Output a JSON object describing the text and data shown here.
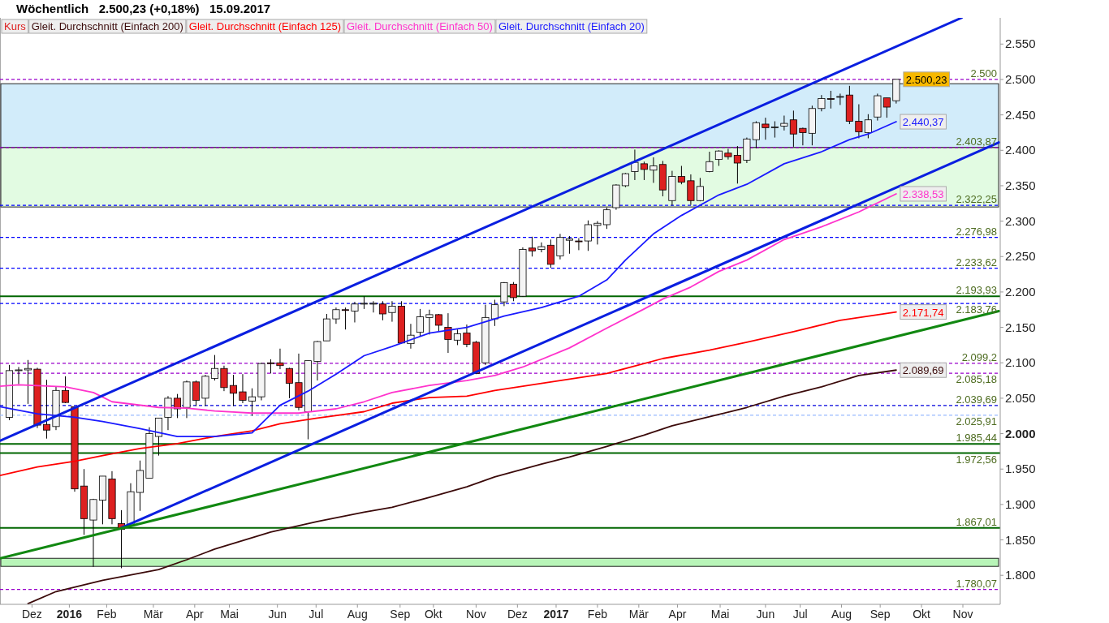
{
  "chart_data": {
    "type": "candlestick",
    "title": "Wöchentlich   2.500,23 (+0,18%)   15.09.2017",
    "xlim": [
      "2015-11-13",
      "2017-12-02"
    ],
    "xticks": [
      {
        "value": "2015-12-07",
        "label": "Dez"
      },
      {
        "value": "2016-01-04",
        "label": "2016"
      },
      {
        "value": "2016-02-01",
        "label": "Feb"
      },
      {
        "value": "2016-03-07",
        "label": "Mär"
      },
      {
        "value": "2016-04-07",
        "label": "Apr"
      },
      {
        "value": "2016-05-03",
        "label": "Mai"
      },
      {
        "value": "2016-06-08",
        "label": "Jun"
      },
      {
        "value": "2016-07-07",
        "label": "Jul"
      },
      {
        "value": "2016-08-07",
        "label": "Aug"
      },
      {
        "value": "2016-09-08",
        "label": "Sep"
      },
      {
        "value": "2016-10-03",
        "label": "Okt"
      },
      {
        "value": "2016-11-04",
        "label": "Nov"
      },
      {
        "value": "2016-12-05",
        "label": "Dez"
      },
      {
        "value": "2017-01-03",
        "label": "2017"
      },
      {
        "value": "2017-02-03",
        "label": "Feb"
      },
      {
        "value": "2017-03-06",
        "label": "Mär"
      },
      {
        "value": "2017-04-04",
        "label": "Apr"
      },
      {
        "value": "2017-05-06",
        "label": "Mai"
      },
      {
        "value": "2017-06-09",
        "label": "Jun"
      },
      {
        "value": "2017-07-05",
        "label": "Jul"
      },
      {
        "value": "2017-08-05",
        "label": "Aug"
      },
      {
        "value": "2017-09-03",
        "label": "Sep"
      },
      {
        "value": "2017-10-04",
        "label": "Okt"
      },
      {
        "value": "2017-11-04",
        "label": "Nov"
      }
    ],
    "ylim": [
      1759,
      2587
    ],
    "yticks": [
      {
        "value": 1800,
        "label": "1.800"
      },
      {
        "value": 1850,
        "label": "1.850"
      },
      {
        "value": 1900,
        "label": "1.900"
      },
      {
        "value": 1950,
        "label": "1.950"
      },
      {
        "value": 2000,
        "label": "2.000"
      },
      {
        "value": 2050,
        "label": "2.050"
      },
      {
        "value": 2100,
        "label": "2.100"
      },
      {
        "value": 2150,
        "label": "2.150"
      },
      {
        "value": 2200,
        "label": "2.200"
      },
      {
        "value": 2250,
        "label": "2.250"
      },
      {
        "value": 2300,
        "label": "2.300"
      },
      {
        "value": 2350,
        "label": "2.350"
      },
      {
        "value": 2400,
        "label": "2.400"
      },
      {
        "value": 2450,
        "label": "2.450"
      },
      {
        "value": 2500,
        "label": "2.500"
      },
      {
        "value": 2550,
        "label": "2.550"
      }
    ],
    "legend": "top left",
    "series": [
      {
        "name": "Kurs",
        "color": "#dd2020",
        "colors": [
          "#f4f4f4",
          "#f4f4f4",
          "#f4f4f4",
          "#dd2020",
          "#dd2020",
          "#f4f4f4",
          "#dd2020",
          "#dd2020",
          "#dd2020",
          "#f4f4f4",
          "#f4f4f4",
          "#dd2020",
          "#dd2020",
          "#f4f4f4",
          "#f4f4f4",
          "#f4f4f4",
          "#f4f4f4",
          "#f4f4f4",
          "#dd2020",
          "#f4f4f4",
          "#dd2020",
          "#f4f4f4",
          "#f4f4f4",
          "#dd2020",
          "#dd2020",
          "#dd2020",
          "#f4f4f4",
          "#f4f4f4",
          "#dd2020",
          "#dd2020",
          "#dd2020",
          "#dd2020",
          "#f4f4f4",
          "#f4f4f4",
          "#f4f4f4",
          "#f4f4f4",
          "#dd2020",
          "#f4f4f4",
          "#f4f4f4",
          "#f4f4f4",
          "#dd2020",
          "#f4f4f4",
          "#dd2020",
          "#f4f4f4",
          "#f4f4f4",
          "#f4f4f4",
          "#dd2020",
          "#dd2020",
          "#f4f4f4",
          "#dd2020",
          "#dd2020",
          "#f4f4f4",
          "#f4f4f4",
          "#f4f4f4",
          "#dd2020",
          "#f4f4f4",
          "#dd2020",
          "#f4f4f4",
          "#dd2020",
          "#f4f4f4",
          "#f4f4f4",
          "#dd2020",
          "#f4f4f4",
          "#f4f4f4",
          "#f4f4f4",
          "#f4f4f4",
          "#f4f4f4",
          "#f4f4f4",
          "#dd2020",
          "#f4f4f4",
          "#dd2020",
          "#f4f4f4",
          "#dd2020",
          "#dd2020",
          "#f4f4f4",
          "#f4f4f4",
          "#f4f4f4",
          "#dd2020",
          "#dd2020",
          "#f4f4f4",
          "#f4f4f4",
          "#dd2020",
          "#f4f4f4",
          "#f4f4f4",
          "#dd2020",
          "#dd2020",
          "#f4f4f4",
          "#f4f4f4",
          "#dd2020",
          "#f4f4f4",
          "#dd2020",
          "#dd2020",
          "#f4f4f4",
          "#f4f4f4",
          "#dd2020",
          "#f4f4f4"
        ],
        "x": [
          "2015-11-20",
          "2015-11-27",
          "2015-12-04",
          "2015-12-11",
          "2015-12-18",
          "2015-12-25",
          "2016-01-01",
          "2016-01-08",
          "2016-01-15",
          "2016-01-22",
          "2016-01-29",
          "2016-02-05",
          "2016-02-12",
          "2016-02-19",
          "2016-02-26",
          "2016-03-04",
          "2016-03-11",
          "2016-03-18",
          "2016-03-25",
          "2016-04-01",
          "2016-04-08",
          "2016-04-15",
          "2016-04-22",
          "2016-04-29",
          "2016-05-06",
          "2016-05-13",
          "2016-05-20",
          "2016-05-27",
          "2016-06-03",
          "2016-06-10",
          "2016-06-17",
          "2016-06-24",
          "2016-07-01",
          "2016-07-08",
          "2016-07-15",
          "2016-07-22",
          "2016-07-29",
          "2016-08-05",
          "2016-08-12",
          "2016-08-19",
          "2016-08-26",
          "2016-09-02",
          "2016-09-09",
          "2016-09-16",
          "2016-09-23",
          "2016-09-30",
          "2016-10-07",
          "2016-10-14",
          "2016-10-21",
          "2016-10-28",
          "2016-11-04",
          "2016-11-11",
          "2016-11-18",
          "2016-11-25",
          "2016-12-02",
          "2016-12-09",
          "2016-12-16",
          "2016-12-23",
          "2016-12-30",
          "2017-01-06",
          "2017-01-13",
          "2017-01-20",
          "2017-01-27",
          "2017-02-03",
          "2017-02-10",
          "2017-02-17",
          "2017-02-24",
          "2017-03-03",
          "2017-03-10",
          "2017-03-17",
          "2017-03-24",
          "2017-03-31",
          "2017-04-07",
          "2017-04-14",
          "2017-04-21",
          "2017-04-28",
          "2017-05-05",
          "2017-05-12",
          "2017-05-19",
          "2017-05-26",
          "2017-06-02",
          "2017-06-09",
          "2017-06-16",
          "2017-06-23",
          "2017-06-30",
          "2017-07-07",
          "2017-07-14",
          "2017-07-21",
          "2017-07-28",
          "2017-08-04",
          "2017-08-11",
          "2017-08-18",
          "2017-08-25",
          "2017-09-01",
          "2017-09-08",
          "2017-09-15"
        ],
        "ohlc": [
          [
            2023,
            2097,
            2019,
            2089
          ],
          [
            2089,
            2094,
            2070,
            2090
          ],
          [
            2090,
            2104,
            2042,
            2092
          ],
          [
            2091,
            2093,
            2008,
            2012
          ],
          [
            2013,
            2076,
            1993,
            2005
          ],
          [
            2010,
            2067,
            2005,
            2061
          ],
          [
            2061,
            2081,
            2043,
            2044
          ],
          [
            2038,
            2038,
            1918,
            1922
          ],
          [
            1926,
            1950,
            1857,
            1880
          ],
          [
            1878,
            1908,
            1812,
            1907
          ],
          [
            1906,
            1940,
            1872,
            1940
          ],
          [
            1936,
            1947,
            1872,
            1880
          ],
          [
            1873,
            1892,
            1810,
            1865
          ],
          [
            1871,
            1930,
            1871,
            1918
          ],
          [
            1917,
            1962,
            1891,
            1948
          ],
          [
            1937,
            2009,
            1937,
            2000
          ],
          [
            1996,
            2022,
            1969,
            2022
          ],
          [
            2023,
            2053,
            2005,
            2050
          ],
          [
            2050,
            2056,
            2022,
            2035
          ],
          [
            2037,
            2075,
            2022,
            2073
          ],
          [
            2073,
            2075,
            2039,
            2047
          ],
          [
            2050,
            2083,
            2039,
            2081
          ],
          [
            2078,
            2111,
            2075,
            2092
          ],
          [
            2092,
            2096,
            2060,
            2065
          ],
          [
            2068,
            2083,
            2039,
            2057
          ],
          [
            2059,
            2084,
            2043,
            2047
          ],
          [
            2046,
            2064,
            2025,
            2052
          ],
          [
            2052,
            2100,
            2047,
            2099
          ],
          [
            2100,
            2105,
            2085,
            2099
          ],
          [
            2100,
            2120,
            2091,
            2096
          ],
          [
            2092,
            2093,
            2050,
            2071
          ],
          [
            2072,
            2113,
            2033,
            2037
          ],
          [
            2031,
            2103,
            1992,
            2103
          ],
          [
            2102,
            2131,
            2075,
            2130
          ],
          [
            2131,
            2169,
            2131,
            2162
          ],
          [
            2162,
            2178,
            2155,
            2175
          ],
          [
            2175,
            2178,
            2147,
            2174
          ],
          [
            2173,
            2186,
            2157,
            2183
          ],
          [
            2183,
            2194,
            2176,
            2184
          ],
          [
            2184,
            2187,
            2171,
            2184
          ],
          [
            2183,
            2187,
            2160,
            2169
          ],
          [
            2171,
            2187,
            2158,
            2180
          ],
          [
            2180,
            2187,
            2127,
            2128
          ],
          [
            2127,
            2155,
            2120,
            2139
          ],
          [
            2143,
            2176,
            2137,
            2165
          ],
          [
            2164,
            2175,
            2140,
            2168
          ],
          [
            2168,
            2169,
            2144,
            2153
          ],
          [
            2150,
            2170,
            2114,
            2133
          ],
          [
            2132,
            2147,
            2125,
            2141
          ],
          [
            2142,
            2154,
            2122,
            2126
          ],
          [
            2129,
            2131,
            2084,
            2085
          ],
          [
            2100,
            2182,
            2097,
            2164
          ],
          [
            2162,
            2189,
            2152,
            2182
          ],
          [
            2186,
            2214,
            2180,
            2213
          ],
          [
            2211,
            2214,
            2187,
            2192
          ],
          [
            2194,
            2263,
            2193,
            2260
          ],
          [
            2262,
            2278,
            2250,
            2258
          ],
          [
            2260,
            2270,
            2256,
            2264
          ],
          [
            2266,
            2274,
            2234,
            2239
          ],
          [
            2251,
            2282,
            2246,
            2277
          ],
          [
            2273,
            2279,
            2254,
            2275
          ],
          [
            2272,
            2276,
            2259,
            2271
          ],
          [
            2272,
            2301,
            2258,
            2295
          ],
          [
            2294,
            2300,
            2267,
            2297
          ],
          [
            2295,
            2319,
            2289,
            2316
          ],
          [
            2319,
            2352,
            2316,
            2351
          ],
          [
            2350,
            2368,
            2348,
            2367
          ],
          [
            2370,
            2401,
            2358,
            2383
          ],
          [
            2381,
            2384,
            2358,
            2373
          ],
          [
            2372,
            2390,
            2354,
            2378
          ],
          [
            2380,
            2385,
            2335,
            2344
          ],
          [
            2329,
            2371,
            2322,
            2363
          ],
          [
            2363,
            2378,
            2352,
            2355
          ],
          [
            2357,
            2366,
            2323,
            2329
          ],
          [
            2329,
            2361,
            2328,
            2349
          ],
          [
            2370,
            2398,
            2369,
            2384
          ],
          [
            2387,
            2400,
            2378,
            2399
          ],
          [
            2396,
            2402,
            2387,
            2391
          ],
          [
            2393,
            2406,
            2353,
            2382
          ],
          [
            2386,
            2418,
            2382,
            2416
          ],
          [
            2415,
            2441,
            2403,
            2439
          ],
          [
            2437,
            2446,
            2415,
            2432
          ],
          [
            2432,
            2441,
            2418,
            2433
          ],
          [
            2434,
            2449,
            2428,
            2438
          ],
          [
            2443,
            2456,
            2405,
            2423
          ],
          [
            2431,
            2432,
            2407,
            2425
          ],
          [
            2424,
            2463,
            2407,
            2459
          ],
          [
            2459,
            2478,
            2455,
            2473
          ],
          [
            2473,
            2484,
            2459,
            2472
          ],
          [
            2475,
            2480,
            2464,
            2476
          ],
          [
            2478,
            2491,
            2437,
            2441
          ],
          [
            2441,
            2465,
            2417,
            2426
          ],
          [
            2425,
            2451,
            2417,
            2443
          ],
          [
            2447,
            2480,
            2442,
            2477
          ],
          [
            2474,
            2474,
            2446,
            2461
          ],
          [
            2470,
            2500.23,
            2466,
            2500.23
          ]
        ]
      },
      {
        "type": "line",
        "name": "Gleit. Durchschnitt (Einfach 200)",
        "color": "#3b0a0a",
        "x": [
          "2015-12-04",
          "2015-12-25",
          "2016-01-29",
          "2016-03-11",
          "2016-04-01",
          "2016-04-22",
          "2016-06-03",
          "2016-07-08",
          "2016-08-12",
          "2016-09-02",
          "2016-09-30",
          "2016-10-28",
          "2016-11-18",
          "2016-12-23",
          "2017-01-13",
          "2017-02-10",
          "2017-03-10",
          "2017-03-31",
          "2017-05-05",
          "2017-05-26",
          "2017-06-23",
          "2017-07-21",
          "2017-08-18",
          "2017-09-15"
        ],
        "values": [
          1760,
          1777,
          1793,
          1808,
          1822,
          1837,
          1861,
          1876,
          1889,
          1896,
          1910,
          1925,
          1939,
          1957,
          1967,
          1982,
          1998,
          2011,
          2027,
          2037,
          2053,
          2066,
          2082,
          2089.69
        ],
        "value_labels": [
          null,
          null,
          null,
          null,
          null,
          null,
          null,
          null,
          null,
          null,
          null,
          null,
          null,
          null,
          null,
          null,
          null,
          null,
          null,
          null,
          null,
          null,
          null,
          "2.089,69"
        ]
      },
      {
        "type": "line",
        "name": "Gleit. Durchschnitt (Einfach 125)",
        "color": "#ff0000",
        "x": [
          "2015-11-13",
          "2015-12-11",
          "2016-01-08",
          "2016-01-29",
          "2016-02-26",
          "2016-03-25",
          "2016-04-22",
          "2016-05-20",
          "2016-06-10",
          "2016-07-08",
          "2016-08-12",
          "2016-09-02",
          "2016-09-30",
          "2016-10-28",
          "2016-11-18",
          "2016-12-23",
          "2017-02-10",
          "2017-03-24",
          "2017-04-28",
          "2017-05-26",
          "2017-06-30",
          "2017-08-04",
          "2017-09-15"
        ],
        "values": [
          1941,
          1953,
          1961,
          1969,
          1979,
          1986,
          1996,
          2004,
          2014,
          2022,
          2031,
          2043,
          2051,
          2053,
          2061,
          2071,
          2085,
          2106,
          2118,
          2129,
          2144,
          2160,
          2171.74
        ],
        "value_labels": [
          null,
          null,
          null,
          null,
          null,
          null,
          null,
          null,
          null,
          null,
          null,
          null,
          null,
          null,
          null,
          null,
          null,
          null,
          null,
          null,
          null,
          null,
          "2.171,74"
        ]
      },
      {
        "type": "line",
        "name": "Gleit. Durchschnitt (Einfach 50)",
        "color": "#ff33cc",
        "x": [
          "2015-11-13",
          "2015-11-27",
          "2016-01-01",
          "2016-01-22",
          "2016-02-05",
          "2016-03-11",
          "2016-04-01",
          "2016-04-22",
          "2016-05-20",
          "2016-06-24",
          "2016-07-22",
          "2016-08-12",
          "2016-09-02",
          "2016-09-30",
          "2016-10-28",
          "2016-11-18",
          "2016-12-09",
          "2017-01-13",
          "2017-02-10",
          "2017-03-10",
          "2017-03-24",
          "2017-04-14",
          "2017-05-05",
          "2017-05-26",
          "2017-06-23",
          "2017-07-21",
          "2017-08-18",
          "2017-09-15"
        ],
        "values": [
          2067,
          2069,
          2066,
          2058,
          2045,
          2037,
          2036,
          2032,
          2029,
          2029,
          2035,
          2045,
          2058,
          2068,
          2075,
          2082,
          2094,
          2121,
          2149,
          2176,
          2190,
          2207,
          2229,
          2245,
          2274,
          2292,
          2313,
          2338.53
        ],
        "value_labels": [
          null,
          null,
          null,
          null,
          null,
          null,
          null,
          null,
          null,
          null,
          null,
          null,
          null,
          null,
          null,
          null,
          null,
          null,
          null,
          null,
          null,
          null,
          null,
          null,
          null,
          null,
          null,
          "2.338,53"
        ]
      },
      {
        "type": "line",
        "name": "Gleit. Durchschnitt (Einfach 20)",
        "color": "#1a1aff",
        "x": [
          "2015-11-13",
          "2015-12-11",
          "2016-01-08",
          "2016-01-29",
          "2016-02-26",
          "2016-03-25",
          "2016-04-22",
          "2016-05-20",
          "2016-06-10",
          "2016-07-01",
          "2016-07-22",
          "2016-08-12",
          "2016-09-02",
          "2016-09-30",
          "2016-10-28",
          "2016-11-25",
          "2016-12-23",
          "2017-01-20",
          "2017-02-10",
          "2017-02-24",
          "2017-03-17",
          "2017-04-07",
          "2017-05-05",
          "2017-05-26",
          "2017-06-23",
          "2017-07-21",
          "2017-08-11",
          "2017-08-25",
          "2017-09-15"
        ],
        "values": [
          2038,
          2028,
          2023,
          2017,
          2007,
          1996,
          1996,
          2001,
          2040,
          2060,
          2084,
          2110,
          2123,
          2142,
          2150,
          2166,
          2178,
          2194,
          2217,
          2245,
          2282,
          2308,
          2337,
          2352,
          2381,
          2398,
          2415,
          2423,
          2440.37
        ],
        "value_labels": [
          null,
          null,
          null,
          null,
          null,
          null,
          null,
          null,
          null,
          null,
          null,
          null,
          null,
          null,
          null,
          null,
          null,
          null,
          null,
          null,
          null,
          null,
          null,
          null,
          null,
          null,
          null,
          null,
          "2.440,37"
        ]
      },
      {
        "type": "line",
        "color": "#0a1fe0",
        "x": [
          "2015-11-13",
          "2017-11-03"
        ],
        "values": [
          1990,
          2587
        ]
      },
      {
        "type": "line",
        "color": "#0a1fe0",
        "x": [
          "2016-02-12",
          "2017-12-01"
        ],
        "values": [
          1867,
          2411
        ]
      },
      {
        "type": "line",
        "color": "#118811",
        "x": [
          "2015-11-13",
          "2017-12-01"
        ],
        "values": [
          1824,
          2173
        ]
      }
    ],
    "ref_lines": [
      {
        "axis": "y",
        "value": 2500,
        "label": "2.500",
        "color": "#9900cc",
        "line_style": "dashed"
      },
      {
        "axis": "y",
        "value": 2403.87,
        "label": "2.403,87",
        "color": "#9900cc",
        "line_style": "dashed"
      },
      {
        "axis": "y",
        "value": 2322.25,
        "label": "2.322,25",
        "color": "#0000ff",
        "line_style": "dashed"
      },
      {
        "axis": "y",
        "value": 2276.98,
        "label": "2.276,98",
        "color": "#0000ff",
        "line_style": "dashed"
      },
      {
        "axis": "y",
        "value": 2233.62,
        "label": "2.233,62",
        "color": "#0000ff",
        "line_style": "dashed"
      },
      {
        "axis": "y",
        "value": 2193.93,
        "label": "2.193,93",
        "color": "#006600",
        "line_style": "solid"
      },
      {
        "axis": "y",
        "value": 2183.76,
        "label": "2.183,76",
        "color": "#0000ff",
        "line_style": "dashed"
      },
      {
        "axis": "y",
        "value": 2099.2,
        "label": "2.099,2",
        "color": "#9900cc",
        "line_style": "dashed"
      },
      {
        "axis": "y",
        "value": 2085.18,
        "label": "2.085,18",
        "color": "#9900cc",
        "line_style": "dashed"
      },
      {
        "axis": "y",
        "value": 2039.69,
        "label": "2.039,69",
        "color": "#0000dd",
        "line_style": "dashed"
      },
      {
        "axis": "y",
        "value": 2025.91,
        "label": "2.025,91",
        "color": "#99bbff",
        "line_style": "dashed"
      },
      {
        "axis": "y",
        "value": 1985.44,
        "label": "1.985,44",
        "color": "#006600",
        "line_style": "solid"
      },
      {
        "axis": "y",
        "value": 1972.56,
        "label": "1.972,56",
        "color": "#006600",
        "line_style": "solid"
      },
      {
        "axis": "y",
        "value": 1867.01,
        "label": "1.867,01",
        "color": "#006600",
        "line_style": "solid"
      },
      {
        "axis": "y",
        "value": 1780.07,
        "label": "1.780,07",
        "color": "#9900cc",
        "line_style": "dashed"
      }
    ],
    "bands": [
      {
        "axis": "y",
        "from": 2403.87,
        "to": 2494,
        "color": "#d2ecfa"
      },
      {
        "axis": "y",
        "from": 2320,
        "to": 2403.87,
        "color": "#e2fbe2"
      },
      {
        "axis": "y",
        "from": 1812.6,
        "to": 1824,
        "color": "#b8f5b8"
      }
    ],
    "annotations": [
      {
        "text": "2.500,23",
        "x": "2017-09-15",
        "y": 2500.23
      }
    ]
  }
}
